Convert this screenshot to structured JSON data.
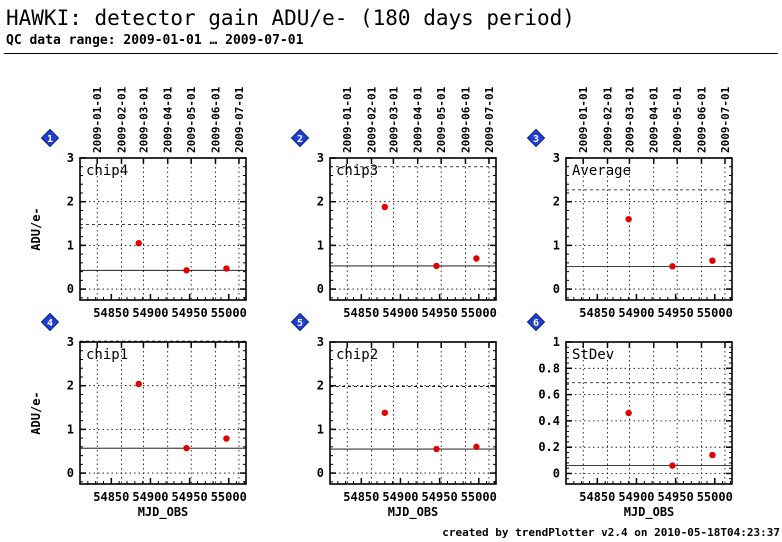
{
  "title": "HAWKI: detector gain ADU/e- (180 days period)",
  "subtitle": "QC data range: 2009-01-01 … 2009-07-01",
  "footer": "created by trendPlotter v2.4 on 2010-05-18T04:23:37",
  "colors": {
    "data_point": "#e00000",
    "badge": "#1f3fd6",
    "axis": "#000000"
  },
  "chart_data": [
    {
      "type": "scatter",
      "panel_number": "1",
      "label": "chip4",
      "xlabel": "",
      "ylabel": "ADU/e-",
      "xlim": [
        54810,
        55022
      ],
      "ylim": [
        -0.25,
        3
      ],
      "yticks": [
        0,
        1,
        2,
        3
      ],
      "ytick_labels": [
        "0",
        "1",
        "2",
        "3"
      ],
      "xticks": [
        54850,
        54900,
        54950,
        55000
      ],
      "xtick_labels": [
        "54850",
        "54900",
        "54950",
        "55000"
      ],
      "top_ticks": [
        54832,
        54863,
        54891,
        54922,
        54952,
        54983,
        55013
      ],
      "top_tick_labels": [
        "2009-01-01",
        "2009-02-01",
        "2009-03-01",
        "2009-04-01",
        "2009-05-01",
        "2009-06-01",
        "2009-07-01"
      ],
      "grid": true,
      "reference_line": 0.43,
      "upper_limit": 1.48,
      "points": [
        {
          "x": 54885,
          "y": 1.05
        },
        {
          "x": 54946,
          "y": 0.43
        },
        {
          "x": 54997,
          "y": 0.47
        }
      ]
    },
    {
      "type": "scatter",
      "panel_number": "2",
      "label": "chip3",
      "xlabel": "",
      "ylabel": "",
      "xlim": [
        54810,
        55022
      ],
      "ylim": [
        -0.25,
        3
      ],
      "yticks": [
        0,
        1,
        2,
        3
      ],
      "ytick_labels": [
        "0",
        "1",
        "2",
        "3"
      ],
      "xticks": [
        54850,
        54900,
        54950,
        55000
      ],
      "xtick_labels": [
        "54850",
        "54900",
        "54950",
        "55000"
      ],
      "top_ticks": [
        54832,
        54863,
        54891,
        54922,
        54952,
        54983,
        55013
      ],
      "top_tick_labels": [
        "2009-01-01",
        "2009-02-01",
        "2009-03-01",
        "2009-04-01",
        "2009-05-01",
        "2009-06-01",
        "2009-07-01"
      ],
      "grid": true,
      "reference_line": 0.53,
      "upper_limit": 2.8,
      "points": [
        {
          "x": 54880,
          "y": 1.88
        },
        {
          "x": 54946,
          "y": 0.53
        },
        {
          "x": 54997,
          "y": 0.7
        }
      ]
    },
    {
      "type": "scatter",
      "panel_number": "3",
      "label": "Average",
      "xlabel": "",
      "ylabel": "",
      "xlim": [
        54810,
        55022
      ],
      "ylim": [
        -0.25,
        3
      ],
      "yticks": [
        0,
        1,
        2,
        3
      ],
      "ytick_labels": [
        "0",
        "1",
        "2",
        "3"
      ],
      "xticks": [
        54850,
        54900,
        54950,
        55000
      ],
      "xtick_labels": [
        "54850",
        "54900",
        "54950",
        "55000"
      ],
      "top_ticks": [
        54832,
        54863,
        54891,
        54922,
        54952,
        54983,
        55013
      ],
      "top_tick_labels": [
        "2009-01-01",
        "2009-02-01",
        "2009-03-01",
        "2009-04-01",
        "2009-05-01",
        "2009-06-01",
        "2009-07-01"
      ],
      "grid": true,
      "reference_line": 0.52,
      "upper_limit": 2.27,
      "points": [
        {
          "x": 54890,
          "y": 1.6
        },
        {
          "x": 54946,
          "y": 0.52
        },
        {
          "x": 54997,
          "y": 0.65
        }
      ]
    },
    {
      "type": "scatter",
      "panel_number": "4",
      "label": "chip1",
      "xlabel": "MJD_OBS",
      "ylabel": "ADU/e-",
      "xlim": [
        54810,
        55022
      ],
      "ylim": [
        -0.25,
        3
      ],
      "yticks": [
        0,
        1,
        2,
        3
      ],
      "ytick_labels": [
        "0",
        "1",
        "2",
        "3"
      ],
      "xticks": [
        54850,
        54900,
        54950,
        55000
      ],
      "xtick_labels": [
        "54850",
        "54900",
        "54950",
        "55000"
      ],
      "top_ticks": [
        54832,
        54863,
        54891,
        54922,
        54952,
        54983,
        55013
      ],
      "top_tick_labels": [],
      "grid": true,
      "reference_line": 0.57,
      "upper_limit": 3.02,
      "points": [
        {
          "x": 54885,
          "y": 2.04
        },
        {
          "x": 54946,
          "y": 0.57
        },
        {
          "x": 54997,
          "y": 0.79
        }
      ]
    },
    {
      "type": "scatter",
      "panel_number": "5",
      "label": "chip2",
      "xlabel": "MJD_OBS",
      "ylabel": "",
      "xlim": [
        54810,
        55022
      ],
      "ylim": [
        -0.25,
        3
      ],
      "yticks": [
        0,
        1,
        2,
        3
      ],
      "ytick_labels": [
        "0",
        "1",
        "2",
        "3"
      ],
      "xticks": [
        54850,
        54900,
        54950,
        55000
      ],
      "xtick_labels": [
        "54850",
        "54900",
        "54950",
        "55000"
      ],
      "top_ticks": [
        54832,
        54863,
        54891,
        54922,
        54952,
        54983,
        55013
      ],
      "top_tick_labels": [],
      "grid": true,
      "reference_line": 0.55,
      "upper_limit": 1.98,
      "points": [
        {
          "x": 54880,
          "y": 1.38
        },
        {
          "x": 54946,
          "y": 0.55
        },
        {
          "x": 54997,
          "y": 0.6
        }
      ]
    },
    {
      "type": "scatter",
      "panel_number": "6",
      "label": "StDev",
      "xlabel": "MJD_OBS",
      "ylabel": "",
      "xlim": [
        54810,
        55022
      ],
      "ylim": [
        -0.08,
        1
      ],
      "yticks": [
        0,
        0.2,
        0.4,
        0.6,
        0.8,
        1
      ],
      "ytick_labels": [
        "0",
        "0.2",
        "0.4",
        "0.6",
        "0.8",
        "1"
      ],
      "xticks": [
        54850,
        54900,
        54950,
        55000
      ],
      "xtick_labels": [
        "54850",
        "54900",
        "54950",
        "55000"
      ],
      "top_ticks": [
        54832,
        54863,
        54891,
        54922,
        54952,
        54983,
        55013
      ],
      "top_tick_labels": [],
      "grid": true,
      "reference_line": 0.06,
      "upper_limit": 0.69,
      "points": [
        {
          "x": 54890,
          "y": 0.46
        },
        {
          "x": 54946,
          "y": 0.06
        },
        {
          "x": 54997,
          "y": 0.14
        }
      ]
    }
  ]
}
